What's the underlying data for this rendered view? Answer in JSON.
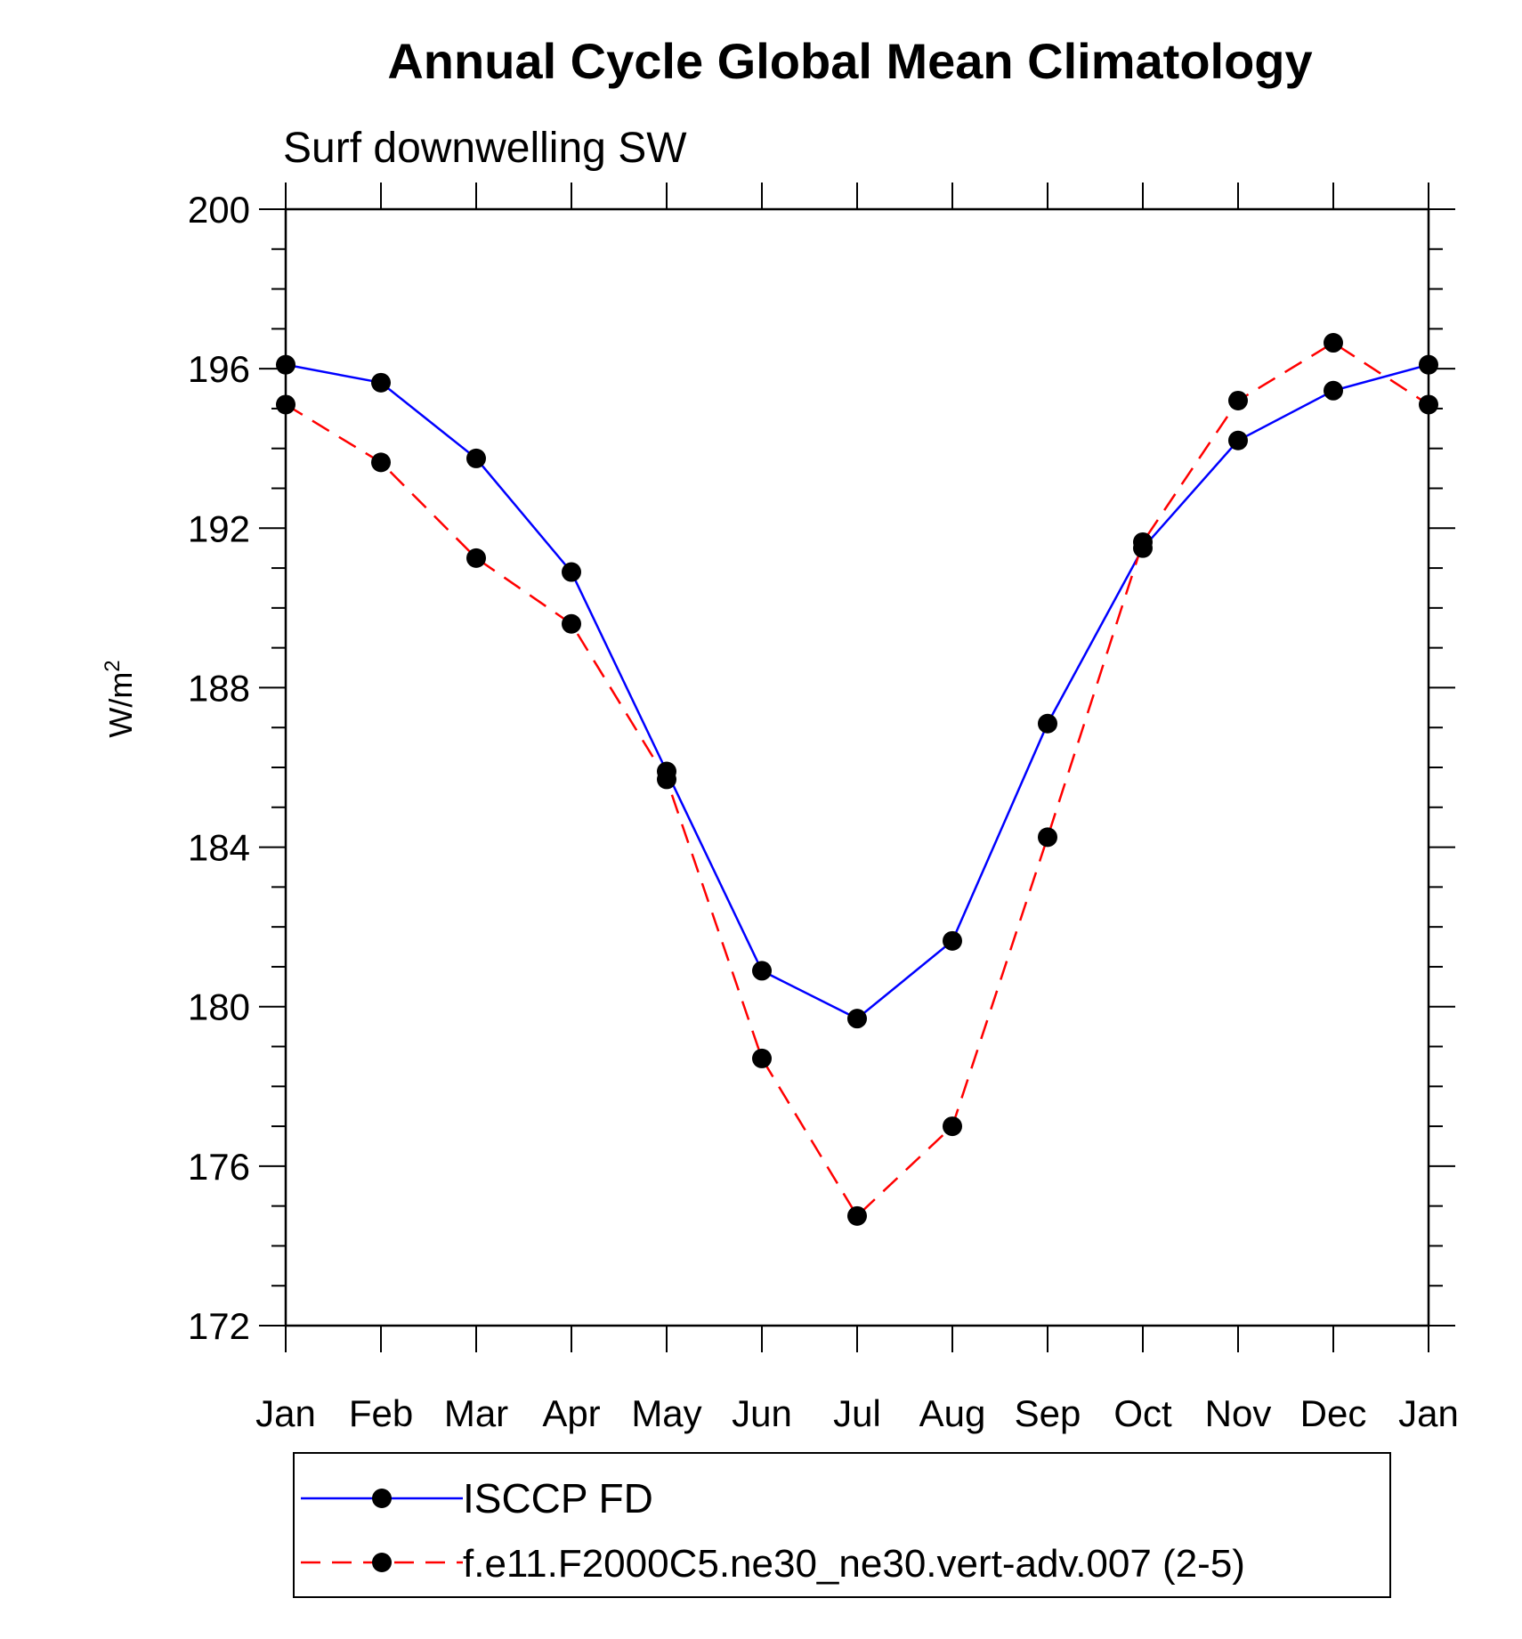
{
  "chart_data": {
    "type": "line",
    "title": "Annual Cycle Global Mean Climatology",
    "subtitle": "Surf downwelling SW",
    "ylabel": "W/m",
    "ylabel_superscript": "2",
    "xlabel": "",
    "categories": [
      "Jan",
      "Feb",
      "Mar",
      "Apr",
      "May",
      "Jun",
      "Jul",
      "Aug",
      "Sep",
      "Oct",
      "Nov",
      "Dec",
      "Jan"
    ],
    "ylim": [
      172,
      200
    ],
    "yticks": [
      172,
      176,
      180,
      184,
      188,
      192,
      196,
      200
    ],
    "y_minor_step": 1,
    "grid": false,
    "legend_position": "bottom",
    "series": [
      {
        "name": "ISCCP FD",
        "color": "#0000ff",
        "style": "solid",
        "marker": "filled-circle",
        "values": [
          196.1,
          195.65,
          193.75,
          190.9,
          185.9,
          180.9,
          179.7,
          181.65,
          187.1,
          191.5,
          194.2,
          195.45,
          196.1
        ]
      },
      {
        "name": "f.e11.F2000C5.ne30_ne30.vert-adv.007 (2-5)",
        "color": "#ff0000",
        "style": "dashed",
        "marker": "filled-circle",
        "values": [
          195.1,
          193.65,
          191.25,
          189.6,
          185.7,
          178.7,
          174.75,
          177.0,
          184.25,
          191.65,
          195.2,
          196.65,
          195.1
        ]
      }
    ]
  }
}
